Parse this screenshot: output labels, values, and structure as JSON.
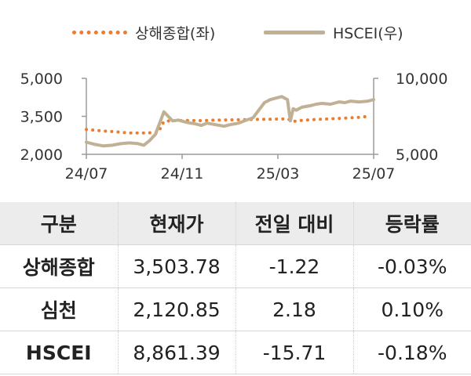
{
  "chart_data": {
    "type": "line",
    "x_ticks": [
      "24/07",
      "24/11",
      "25/03",
      "25/07"
    ],
    "left_axis": {
      "ticks": [
        "5,000",
        "3,500",
        "2,000"
      ],
      "ylim": [
        2000,
        5000
      ]
    },
    "right_axis": {
      "ticks": [
        "10,000",
        "5,000"
      ],
      "ylim": [
        5000,
        10000
      ]
    },
    "series": [
      {
        "name": "상해종합(좌)",
        "axis": "left",
        "style": "dotted",
        "color": "#ee7b2e",
        "x_fraction": [
          0.0,
          0.05,
          0.1,
          0.15,
          0.2,
          0.25,
          0.27,
          0.3,
          0.35,
          0.4,
          0.45,
          0.5,
          0.55,
          0.6,
          0.65,
          0.7,
          0.72,
          0.75,
          0.8,
          0.85,
          0.9,
          0.95,
          0.99
        ],
        "values": [
          2980,
          2930,
          2890,
          2840,
          2840,
          2860,
          3300,
          3330,
          3340,
          3330,
          3350,
          3360,
          3370,
          3380,
          3390,
          3400,
          3300,
          3340,
          3380,
          3400,
          3430,
          3460,
          3510
        ]
      },
      {
        "name": "HSCEI(우)",
        "axis": "right",
        "style": "solid",
        "color": "#c0b194",
        "x_fraction": [
          0.0,
          0.03,
          0.06,
          0.09,
          0.12,
          0.15,
          0.18,
          0.2,
          0.22,
          0.24,
          0.26,
          0.27,
          0.28,
          0.3,
          0.32,
          0.35,
          0.38,
          0.4,
          0.42,
          0.45,
          0.48,
          0.5,
          0.53,
          0.55,
          0.58,
          0.6,
          0.62,
          0.64,
          0.66,
          0.68,
          0.7,
          0.71,
          0.72,
          0.73,
          0.75,
          0.78,
          0.8,
          0.82,
          0.85,
          0.88,
          0.9,
          0.92,
          0.95,
          0.98,
          1.0
        ],
        "values": [
          5800,
          5650,
          5550,
          5600,
          5700,
          5750,
          5700,
          5600,
          5900,
          6300,
          7300,
          7800,
          7600,
          7200,
          7250,
          7100,
          7000,
          6900,
          7050,
          6950,
          6850,
          6950,
          7050,
          7200,
          7400,
          7900,
          8400,
          8600,
          8700,
          8800,
          8600,
          7200,
          8000,
          7900,
          8100,
          8200,
          8300,
          8350,
          8300,
          8450,
          8400,
          8500,
          8450,
          8500,
          8600
        ]
      }
    ]
  },
  "table": {
    "headers": [
      "구분",
      "현재가",
      "전일 대비",
      "등락률"
    ],
    "rows": [
      {
        "name": "상해종합",
        "price": "3,503.78",
        "change": "-1.22",
        "pct": "-0.03%"
      },
      {
        "name": "심천",
        "price": "2,120.85",
        "change": "2.18",
        "pct": "0.10%"
      },
      {
        "name": "HSCEI",
        "price": "8,861.39",
        "change": "-15.71",
        "pct": "-0.18%"
      }
    ]
  }
}
